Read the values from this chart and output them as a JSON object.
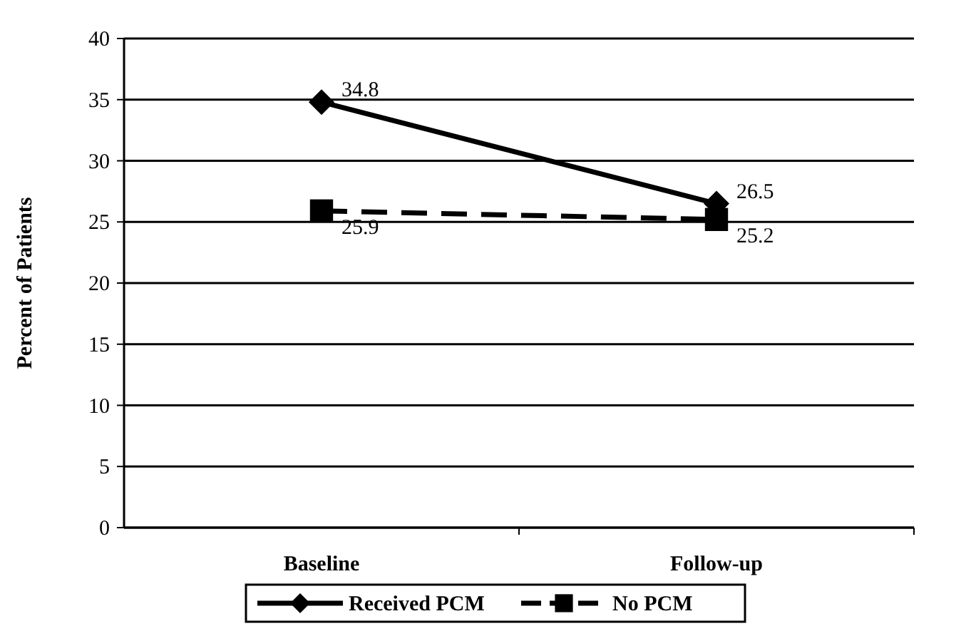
{
  "chart_data": {
    "type": "line",
    "ylabel": "Percent of Patients",
    "categories": [
      "Baseline",
      "Follow-up"
    ],
    "series": [
      {
        "name": "Received PCM",
        "color": "#000000",
        "values": [
          34.8,
          26.5
        ],
        "marker": "diamond",
        "line_style": "solid"
      },
      {
        "name": "No PCM",
        "color": "#000000",
        "values": [
          25.9,
          25.2
        ],
        "marker": "square",
        "line_style": "dashed"
      }
    ],
    "ylim": [
      0,
      40
    ],
    "yticks": [
      0,
      5,
      10,
      15,
      20,
      25,
      30,
      35,
      40
    ],
    "grid": "y",
    "legend": "bottom",
    "data_labels": true
  }
}
